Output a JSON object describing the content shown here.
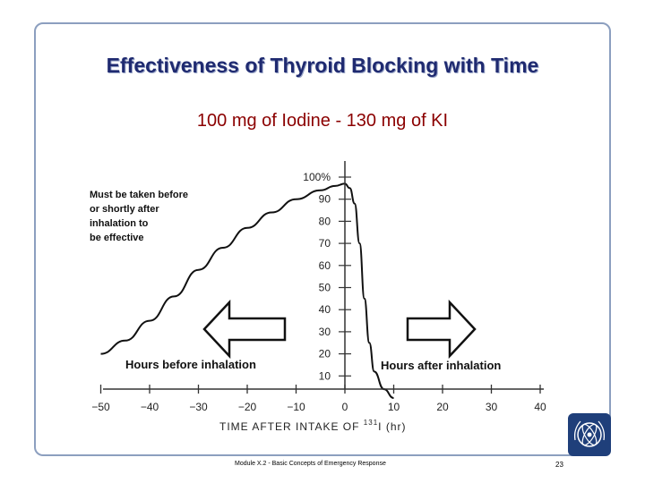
{
  "slide": {
    "title": "Effectiveness of Thyroid Blocking with Time",
    "subtitle": "100 mg of Iodine  - 130 mg of KI",
    "footer": "Module X.2 - Basic Concepts of Emergency Response",
    "page_number": "23"
  },
  "chart_data": {
    "type": "line",
    "xlabel_main": "TIME AFTER INTAKE OF ",
    "xlabel_sup": "131",
    "xlabel_tail": "I (hr)",
    "x_ticks": [
      "−50",
      "−40",
      "−30",
      "−20",
      "−10",
      "0",
      "10",
      "20",
      "30",
      "40"
    ],
    "x_tick_values": [
      -50,
      -40,
      -30,
      -20,
      -10,
      0,
      10,
      20,
      30,
      40
    ],
    "y_ticks": [
      "100%",
      "90",
      "80",
      "70",
      "60",
      "50",
      "40",
      "30",
      "20",
      "10"
    ],
    "y_tick_values": [
      100,
      90,
      80,
      70,
      60,
      50,
      40,
      30,
      20,
      10
    ],
    "xlim": [
      -50,
      40
    ],
    "ylim": [
      0,
      100
    ],
    "series": [
      {
        "x": [
          -50,
          -45,
          -40,
          -35,
          -30,
          -25,
          -20,
          -15,
          -10,
          -5,
          -2,
          0,
          1,
          2,
          3,
          4,
          5,
          6,
          8,
          10
        ],
        "y": [
          20,
          26,
          35,
          46,
          58,
          68,
          77,
          84,
          90,
          94,
          96,
          97,
          95,
          88,
          70,
          45,
          25,
          12,
          4,
          0
        ]
      }
    ],
    "annotations": {
      "before_note": [
        "Must be taken before",
        "or shortly after",
        "inhalation to",
        "be effective"
      ],
      "before_label": "Hours before inhalation",
      "after_label": "Hours after inhalation"
    }
  }
}
